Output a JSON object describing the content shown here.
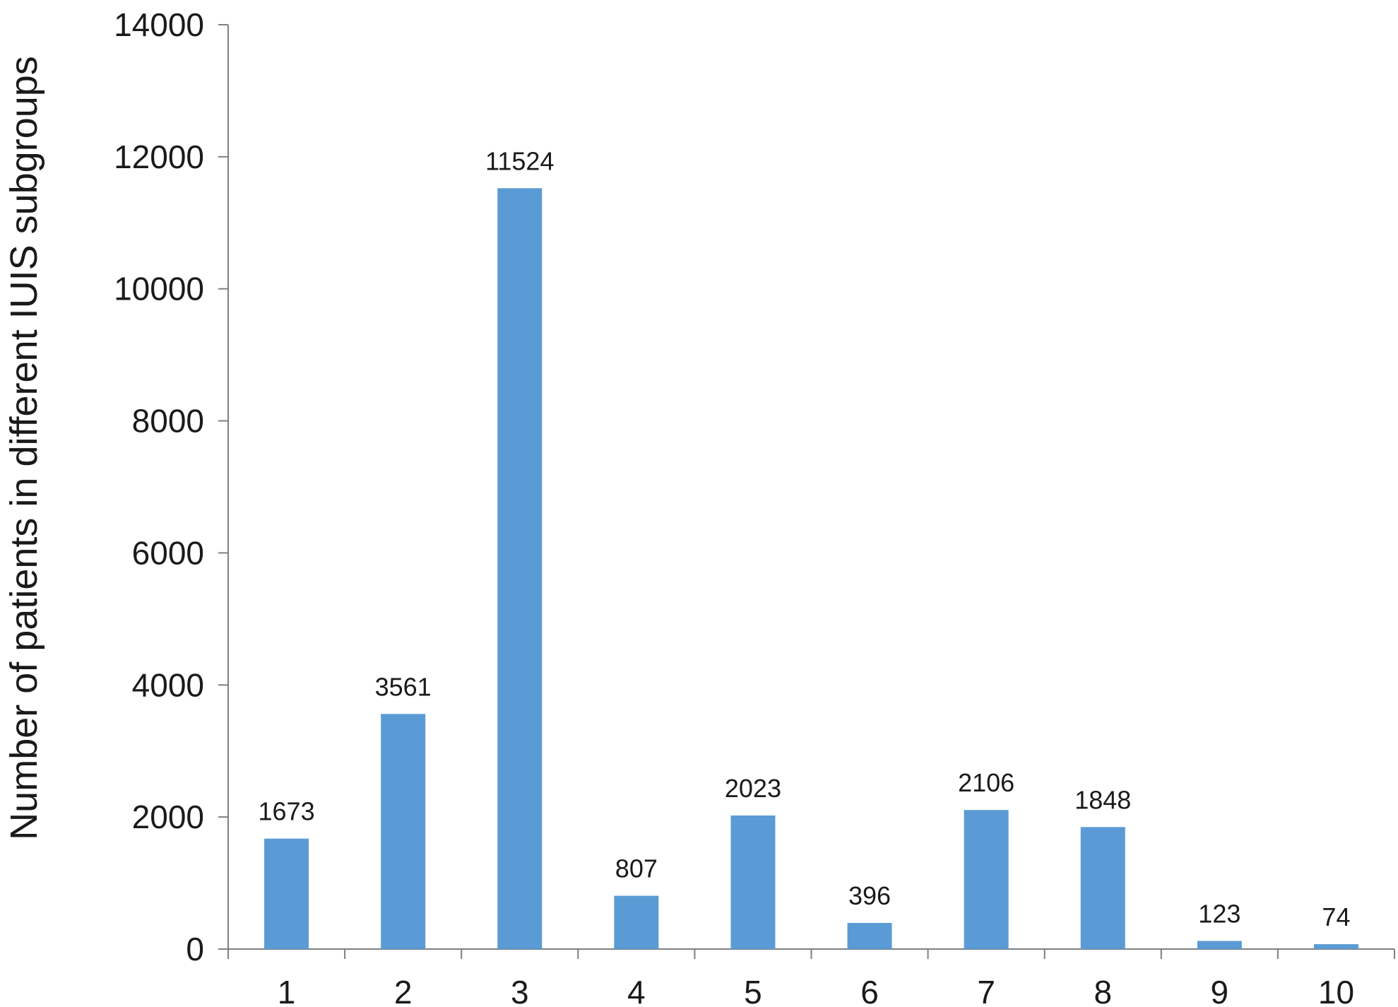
{
  "chart_data": {
    "type": "bar",
    "title": "",
    "xlabel": "",
    "ylabel": "Number of patients in different IUIS subgroups",
    "categories": [
      "1",
      "2",
      "3",
      "4",
      "5",
      "6",
      "7",
      "8",
      "9",
      "10"
    ],
    "values": [
      1673,
      3561,
      11524,
      807,
      2023,
      396,
      2106,
      1848,
      123,
      74
    ],
    "data_labels": [
      "1673",
      "3561",
      "11524",
      "807",
      "2023",
      "396",
      "2106",
      "1848",
      "123",
      "74"
    ],
    "ylim": [
      0,
      14000
    ],
    "yticks": [
      0,
      2000,
      4000,
      6000,
      8000,
      10000,
      12000,
      14000
    ],
    "ytick_labels": [
      "0",
      "2000",
      "4000",
      "6000",
      "8000",
      "10000",
      "12000",
      "14000"
    ],
    "grid": false,
    "legend": "none",
    "bar_color": "#5B9BD5",
    "axis_color": "#7f7f7f"
  }
}
